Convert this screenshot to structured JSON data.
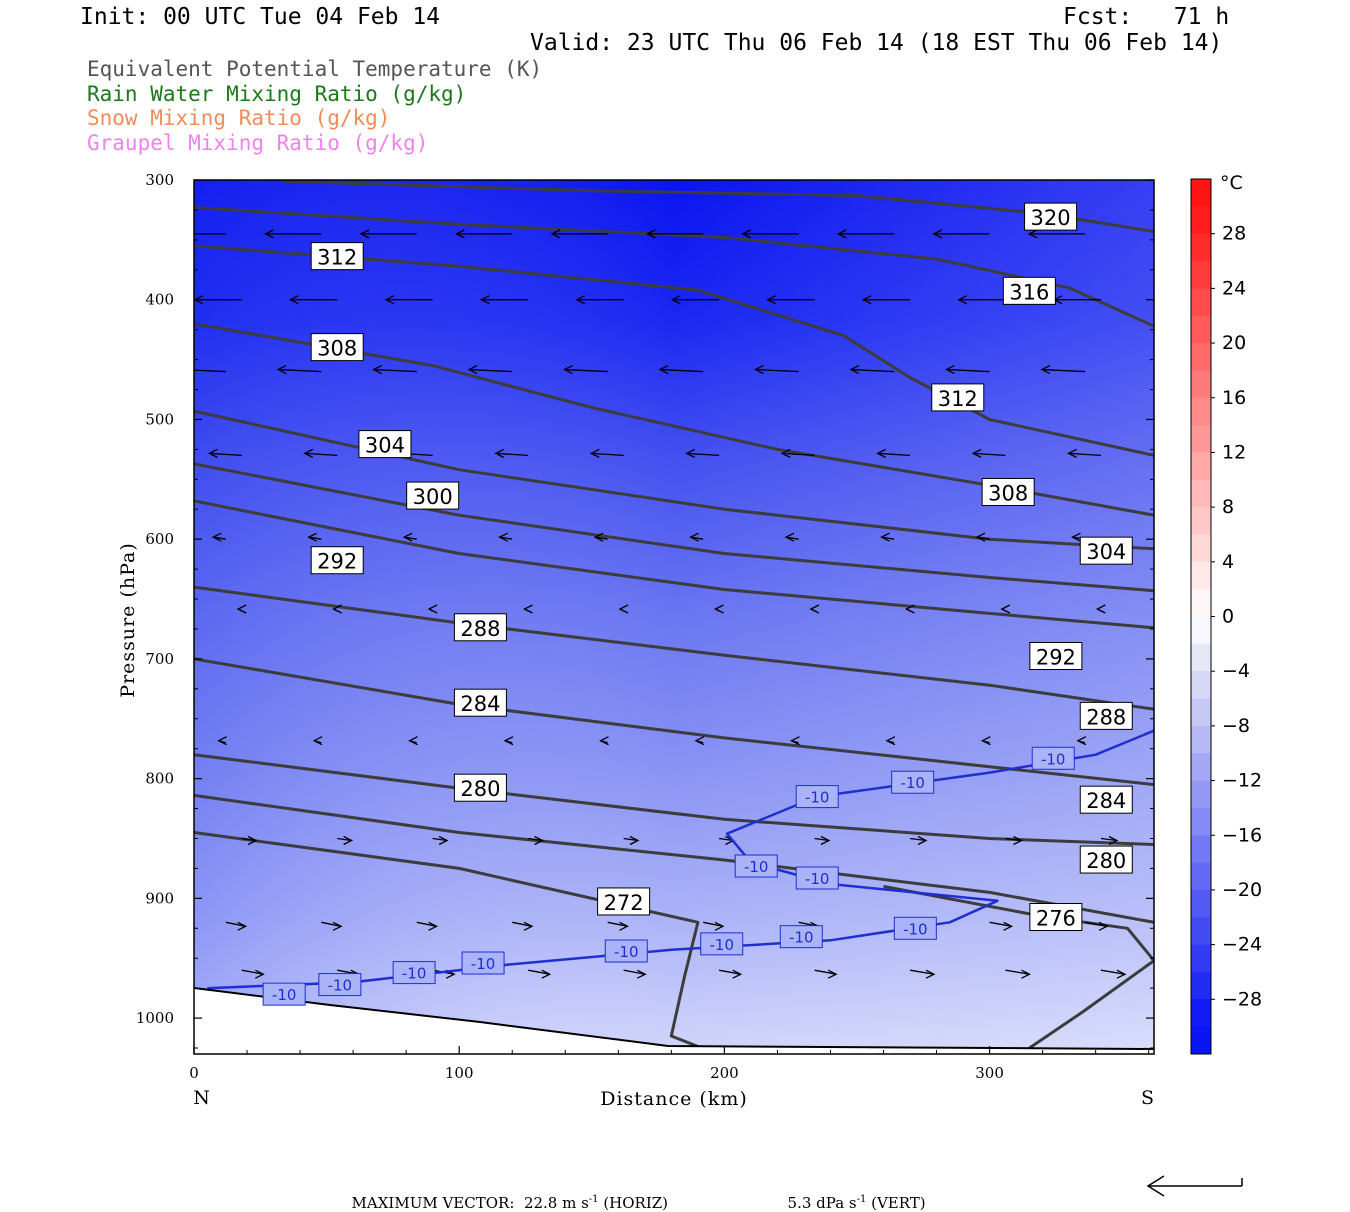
{
  "header": {
    "init": "Init: 00 UTC Tue 04 Feb 14",
    "fcst": "Fcst:   71 h",
    "valid": "Valid: 23 UTC Thu 06 Feb 14 (18 EST Thu 06 Feb 14)"
  },
  "fields": [
    {
      "label": "Equivalent Potential Temperature (K)",
      "color": "#555555"
    },
    {
      "label": "Rain Water Mixing Ratio (g/kg)",
      "color": "#1a7a1a"
    },
    {
      "label": "Snow Mixing Ratio (g/kg)",
      "color": "#f08c5a"
    },
    {
      "label": "Graupel Mixing Ratio (g/kg)",
      "color": "#ee82ee"
    }
  ],
  "chart_data": {
    "type": "cross-section contour",
    "xlabel": "Distance (km)",
    "ylabel": "Pressure (hPa)",
    "xlim": [
      0,
      362
    ],
    "ylim": [
      1030,
      300
    ],
    "x_ticks": [
      0,
      100,
      200,
      300
    ],
    "y_ticks": [
      300,
      400,
      500,
      600,
      700,
      800,
      900,
      1000
    ],
    "left_end_label": "N",
    "right_end_label": "S",
    "colorbar": {
      "unit": "°C",
      "labels": [
        "28",
        "24",
        "20",
        "16",
        "12",
        "8",
        "4",
        "0",
        "-4",
        "-8",
        "-12",
        "-16",
        "-20",
        "-24",
        "-28"
      ],
      "levels": [
        -32,
        -30,
        -28,
        -26,
        -24,
        -22,
        -20,
        -18,
        -16,
        -14,
        -12,
        -10,
        -8,
        -6,
        -4,
        -2,
        0,
        2,
        4,
        6,
        8,
        10,
        12,
        14,
        16,
        18,
        20,
        22,
        24,
        26,
        28,
        30,
        32
      ]
    },
    "theta_e_contours": [
      {
        "label": "320",
        "label_at": [
          323,
          331
        ],
        "points": [
          [
            34,
            301
          ],
          [
            150,
            309
          ],
          [
            250,
            313
          ],
          [
            320,
            328
          ],
          [
            362,
            343
          ]
        ]
      },
      {
        "label": "316",
        "label_at": [
          315,
          393
        ],
        "points": [
          [
            0,
            323
          ],
          [
            100,
            337
          ],
          [
            200,
            348
          ],
          [
            280,
            366
          ],
          [
            330,
            390
          ],
          [
            362,
            422
          ]
        ]
      },
      {
        "label": "312",
        "label_at": [
          54,
          364
        ],
        "points": [
          [
            0,
            355
          ],
          [
            100,
            372
          ],
          [
            190,
            392
          ],
          [
            245,
            430
          ],
          [
            270,
            465
          ],
          [
            300,
            500
          ],
          [
            362,
            530
          ]
        ]
      },
      {
        "label": "312",
        "label_at": [
          288,
          482
        ],
        "points": []
      },
      {
        "label": "308",
        "label_at": [
          54,
          440
        ],
        "points": [
          [
            0,
            420
          ],
          [
            90,
            455
          ],
          [
            150,
            490
          ],
          [
            220,
            525
          ],
          [
            300,
            555
          ],
          [
            362,
            580
          ]
        ]
      },
      {
        "label": "308",
        "label_at": [
          307,
          561
        ],
        "points": []
      },
      {
        "label": "304",
        "label_at": [
          72,
          521
        ],
        "points": [
          [
            0,
            493
          ],
          [
            100,
            542
          ],
          [
            200,
            575
          ],
          [
            300,
            600
          ],
          [
            362,
            608
          ]
        ]
      },
      {
        "label": "304",
        "label_at": [
          344,
          610
        ],
        "points": []
      },
      {
        "label": "300",
        "label_at": [
          90,
          564
        ],
        "points": [
          [
            0,
            537
          ],
          [
            100,
            580
          ],
          [
            200,
            612
          ],
          [
            300,
            632
          ],
          [
            362,
            643
          ]
        ]
      },
      {
        "label": "292",
        "label_at": [
          54,
          618
        ],
        "points": [
          [
            0,
            568
          ],
          [
            100,
            612
          ],
          [
            200,
            642
          ],
          [
            300,
            662
          ],
          [
            362,
            674
          ]
        ]
      },
      {
        "label": "288",
        "label_at": [
          108,
          674
        ],
        "points": [
          [
            0,
            640
          ],
          [
            100,
            670
          ],
          [
            200,
            697
          ],
          [
            300,
            722
          ],
          [
            362,
            742
          ]
        ]
      },
      {
        "label": "292",
        "label_at": [
          325,
          698
        ],
        "points": []
      },
      {
        "label": "284",
        "label_at": [
          108,
          737
        ],
        "points": [
          [
            0,
            700
          ],
          [
            100,
            738
          ],
          [
            200,
            766
          ],
          [
            300,
            790
          ],
          [
            362,
            805
          ]
        ]
      },
      {
        "label": "288",
        "label_at": [
          344,
          748
        ],
        "points": []
      },
      {
        "label": "280",
        "label_at": [
          108,
          808
        ],
        "points": [
          [
            0,
            780
          ],
          [
            100,
            808
          ],
          [
            200,
            834
          ],
          [
            300,
            850
          ],
          [
            362,
            855
          ]
        ]
      },
      {
        "label": "284",
        "label_at": [
          344,
          818
        ],
        "points": []
      },
      {
        "label": "280",
        "label_at": [
          344,
          868
        ],
        "points": [
          [
            0,
            814
          ],
          [
            100,
            845
          ],
          [
            200,
            868
          ],
          [
            300,
            895
          ],
          [
            362,
            920
          ]
        ]
      },
      {
        "label": "272",
        "label_at": [
          162,
          903
        ],
        "points": [
          [
            0,
            845
          ],
          [
            100,
            875
          ],
          [
            190,
            920
          ],
          [
            185,
            965
          ],
          [
            180,
            1015
          ],
          [
            195,
            1028
          ]
        ]
      },
      {
        "label": "276",
        "label_at": [
          325,
          916
        ],
        "points": [
          [
            260,
            890
          ],
          [
            320,
            915
          ],
          [
            352,
            925
          ],
          [
            362,
            952
          ],
          [
            335,
            995
          ],
          [
            315,
            1025
          ]
        ]
      }
    ],
    "temperature_contour": {
      "value": "-10",
      "label_positions": [
        [
          34,
          980
        ],
        [
          55,
          972
        ],
        [
          83,
          962
        ],
        [
          109,
          954
        ],
        [
          163,
          944
        ],
        [
          199,
          938
        ],
        [
          229,
          932
        ],
        [
          272,
          925
        ],
        [
          324,
          783
        ],
        [
          271,
          803
        ],
        [
          235,
          815
        ],
        [
          212,
          873
        ],
        [
          235,
          883
        ]
      ],
      "points": [
        [
          5,
          975
        ],
        [
          60,
          970
        ],
        [
          120,
          955
        ],
        [
          180,
          943
        ],
        [
          240,
          935
        ],
        [
          285,
          920
        ],
        [
          303,
          902
        ],
        [
          240,
          888
        ],
        [
          210,
          870
        ],
        [
          201,
          846
        ],
        [
          235,
          815
        ],
        [
          300,
          795
        ],
        [
          340,
          780
        ],
        [
          362,
          760
        ]
      ]
    }
  },
  "footer": {
    "max_vector_label": "MAXIMUM VECTOR:",
    "horiz_value": "22.8 m s",
    "horiz_suffix": " (HORIZ)",
    "vert_value": "5.3 dPa s",
    "vert_suffix": " (VERT)",
    "exponent": "-1"
  }
}
